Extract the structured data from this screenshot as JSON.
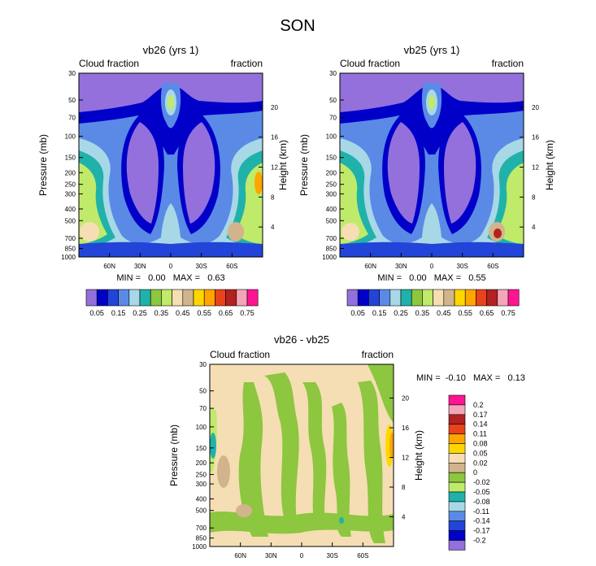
{
  "figure_title": "SON",
  "panels": [
    {
      "title": "vb26 (yrs 1)",
      "left_label": "Cloud fraction",
      "right_label": "fraction",
      "ylabel": "Pressure (mb)",
      "y2label": "Height (km)",
      "stats_text": "MIN =   0.00   MAX =   0.63"
    },
    {
      "title": "vb25 (yrs 1)",
      "left_label": "Cloud fraction",
      "right_label": "fraction",
      "ylabel": "Pressure (mb)",
      "y2label": "Height (km)",
      "stats_text": "MIN =   0.00   MAX =   0.55"
    },
    {
      "title": "vb26 - vb25",
      "left_label": "Cloud fraction",
      "right_label": "fraction",
      "ylabel": "Pressure (mb)",
      "y2label": "Height (km)",
      "stats_text": "MIN =  -0.10   MAX =   0.13"
    }
  ],
  "chart_data": [
    {
      "type": "heatmap",
      "title": "vb26 (yrs 1)",
      "subtitle_left": "Cloud fraction",
      "subtitle_right": "fraction",
      "xlabel": "",
      "ylabel": "Pressure (mb)",
      "y2label": "Height (km)",
      "x_ticks": [
        "60N",
        "30N",
        "0",
        "30S",
        "60S"
      ],
      "x_tick_values": [
        60,
        30,
        0,
        -30,
        -60
      ],
      "xlim": [
        90,
        -90
      ],
      "y_ticks": [
        30,
        50,
        70,
        100,
        150,
        200,
        250,
        300,
        400,
        500,
        700,
        850,
        1000
      ],
      "ylim": [
        1000,
        30
      ],
      "y2_ticks": [
        20,
        16,
        12,
        8,
        4
      ],
      "min": 0.0,
      "max": 0.63,
      "colorbar": {
        "orientation": "horizontal",
        "levels": [
          0.05,
          0.1,
          0.15,
          0.2,
          0.25,
          0.3,
          0.35,
          0.4,
          0.45,
          0.5,
          0.55,
          0.6,
          0.65,
          0.7,
          0.75
        ],
        "labels": [
          "0.05",
          "0.15",
          "0.25",
          "0.35",
          "0.45",
          "0.55",
          "0.65",
          "0.75"
        ],
        "colors": [
          "#9370DB",
          "#0000C8",
          "#2244D8",
          "#5A8AE6",
          "#A8D8E6",
          "#20B2AA",
          "#8DC63F",
          "#C0EA6A",
          "#F5DEB3",
          "#D2B48C",
          "#FFD700",
          "#FFA500",
          "#E8431A",
          "#B22222",
          "#F4A6B8",
          "#FF1493"
        ]
      }
    },
    {
      "type": "heatmap",
      "title": "vb25 (yrs 1)",
      "subtitle_left": "Cloud fraction",
      "subtitle_right": "fraction",
      "xlabel": "",
      "ylabel": "Pressure (mb)",
      "y2label": "Height (km)",
      "x_ticks": [
        "60N",
        "30N",
        "0",
        "30S",
        "60S"
      ],
      "x_tick_values": [
        60,
        30,
        0,
        -30,
        -60
      ],
      "xlim": [
        90,
        -90
      ],
      "y_ticks": [
        30,
        50,
        70,
        100,
        150,
        200,
        250,
        300,
        400,
        500,
        700,
        850,
        1000
      ],
      "ylim": [
        1000,
        30
      ],
      "y2_ticks": [
        20,
        16,
        12,
        8,
        4
      ],
      "min": 0.0,
      "max": 0.55,
      "colorbar": {
        "orientation": "horizontal",
        "levels": [
          0.05,
          0.1,
          0.15,
          0.2,
          0.25,
          0.3,
          0.35,
          0.4,
          0.45,
          0.5,
          0.55,
          0.6,
          0.65,
          0.7,
          0.75
        ],
        "labels": [
          "0.05",
          "0.15",
          "0.25",
          "0.35",
          "0.45",
          "0.55",
          "0.65",
          "0.75"
        ],
        "colors": [
          "#9370DB",
          "#0000C8",
          "#2244D8",
          "#5A8AE6",
          "#A8D8E6",
          "#20B2AA",
          "#8DC63F",
          "#C0EA6A",
          "#F5DEB3",
          "#D2B48C",
          "#FFD700",
          "#FFA500",
          "#E8431A",
          "#B22222",
          "#F4A6B8",
          "#FF1493"
        ]
      }
    },
    {
      "type": "heatmap",
      "title": "vb26 - vb25",
      "subtitle_left": "Cloud fraction",
      "subtitle_right": "fraction",
      "xlabel": "",
      "ylabel": "Pressure (mb)",
      "y2label": "Height (km)",
      "x_ticks": [
        "60N",
        "30N",
        "0",
        "30S",
        "60S"
      ],
      "x_tick_values": [
        60,
        30,
        0,
        -30,
        -60
      ],
      "xlim": [
        90,
        -90
      ],
      "y_ticks": [
        30,
        50,
        70,
        100,
        150,
        200,
        250,
        300,
        400,
        500,
        700,
        850,
        1000
      ],
      "ylim": [
        1000,
        30
      ],
      "y2_ticks": [
        20,
        16,
        12,
        8,
        4
      ],
      "min": -0.1,
      "max": 0.13,
      "colorbar": {
        "orientation": "vertical",
        "labels": [
          "0.2",
          "0.17",
          "0.14",
          "0.11",
          "0.08",
          "0.05",
          "0.02",
          "0",
          "-0.02",
          "-0.05",
          "-0.08",
          "-0.11",
          "-0.14",
          "-0.17",
          "-0.2"
        ],
        "colors": [
          "#FF1493",
          "#F4A6B8",
          "#B22222",
          "#E8431A",
          "#FFA500",
          "#FFD700",
          "#F5DEB3",
          "#D2B48C",
          "#8DC63F",
          "#C0EA6A",
          "#20B2AA",
          "#A8D8E6",
          "#5A8AE6",
          "#2244D8",
          "#0000C8",
          "#9370DB"
        ]
      }
    }
  ]
}
